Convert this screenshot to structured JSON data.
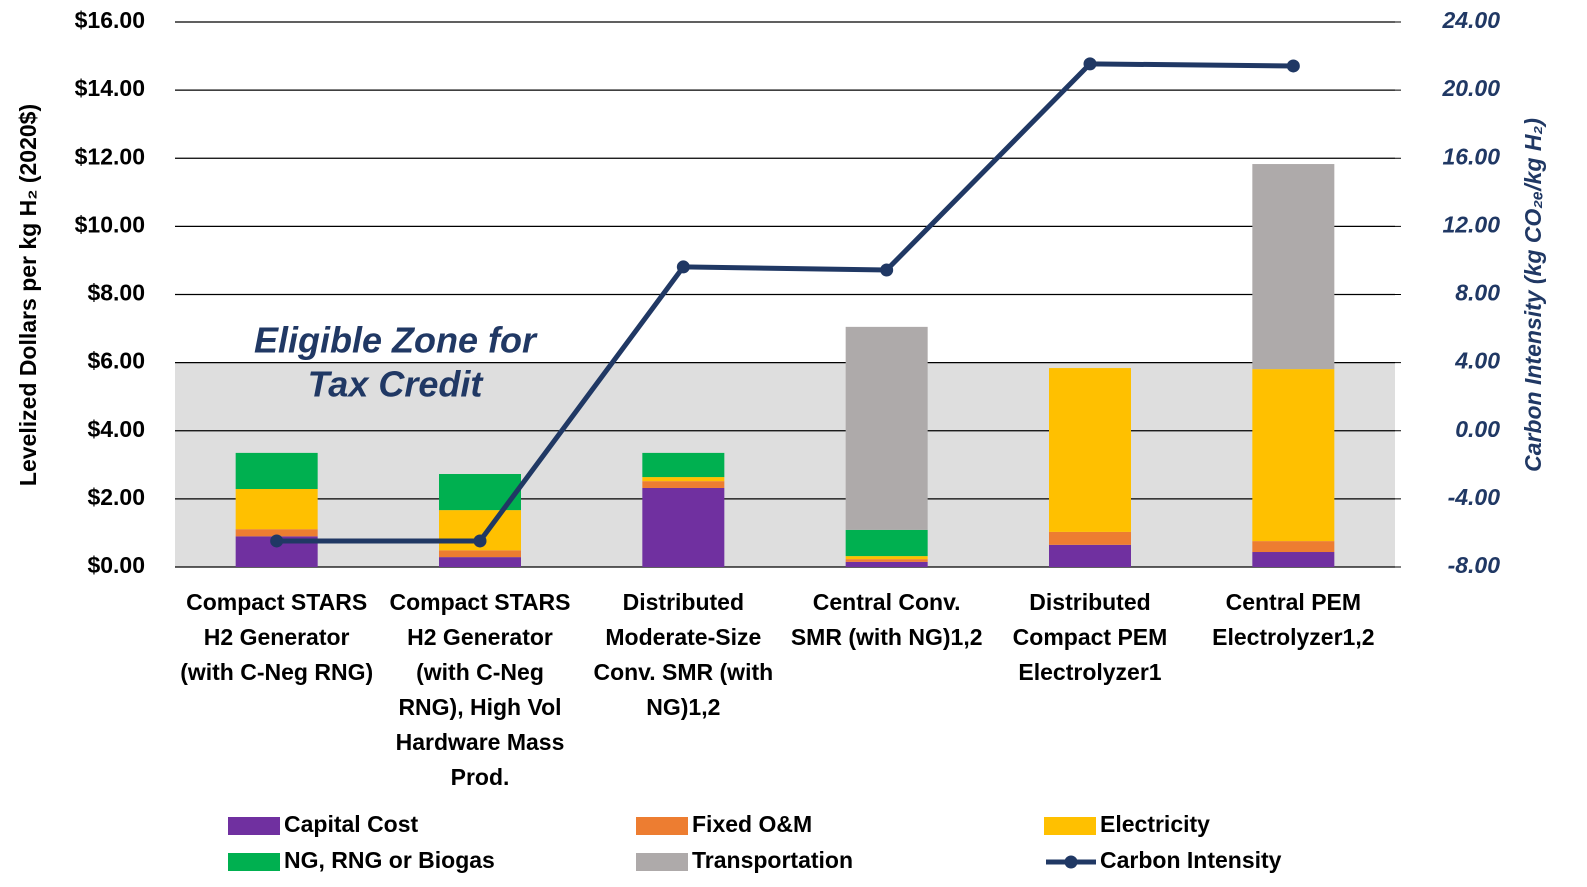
{
  "chart_data": {
    "type": "bar",
    "stacked": true,
    "categories": [
      "Compact STARS H2 Generator (with C-Neg RNG)",
      "Compact STARS H2 Generator (with C-Neg RNG), High Vol Hardware Mass Prod.",
      "Distributed Moderate-Size Conv. SMR (with NG)1,2",
      "Central Conv. SMR (with NG)1,2",
      "Distributed Compact PEM Electrolyzer1",
      "Central PEM Electrolyzer1,2"
    ],
    "series": [
      {
        "name": "Capital Cost",
        "color": "#7030a0",
        "values": [
          0.9,
          0.29,
          2.32,
          0.15,
          0.65,
          0.44
        ]
      },
      {
        "name": "Fixed O&M",
        "color": "#ed7d31",
        "values": [
          0.21,
          0.2,
          0.2,
          0.08,
          0.38,
          0.32
        ]
      },
      {
        "name": "Electricity",
        "color": "#ffc000",
        "values": [
          1.18,
          1.18,
          0.12,
          0.09,
          4.81,
          5.05
        ]
      },
      {
        "name": "NG, RNG or Biogas",
        "color": "#00b050",
        "values": [
          1.06,
          1.06,
          0.71,
          0.77,
          0,
          0
        ]
      },
      {
        "name": "Transportation",
        "color": "#aeaaaa",
        "values": [
          0,
          0,
          0,
          5.96,
          0,
          6.02
        ]
      },
      {
        "name": "Carbon Intensity",
        "color": "#203864",
        "type": "line",
        "axis": "y2",
        "values": [
          -6.47,
          -6.47,
          9.62,
          9.44,
          21.54,
          21.42
        ]
      }
    ],
    "ylabel": "Levelized Dollars per kg H₂ (2020$)",
    "y2label": "Carbon Intensity (kg CO₂ₑ/kg H₂)",
    "ylim": [
      0,
      16
    ],
    "yticks": [
      {
        "value": 0,
        "label": "$0.00"
      },
      {
        "value": 2,
        "label": "$2.00"
      },
      {
        "value": 4,
        "label": "$4.00"
      },
      {
        "value": 6,
        "label": "$6.00"
      },
      {
        "value": 8,
        "label": "$8.00"
      },
      {
        "value": 10,
        "label": "$10.00"
      },
      {
        "value": 12,
        "label": "$12.00"
      },
      {
        "value": 14,
        "label": "$14.00"
      },
      {
        "value": 16,
        "label": "$16.00"
      }
    ],
    "y2lim": [
      -8,
      24
    ],
    "y2ticks": [
      {
        "value": -8,
        "label": "-8.00"
      },
      {
        "value": -4,
        "label": "-4.00"
      },
      {
        "value": 0,
        "label": "0.00"
      },
      {
        "value": 4,
        "label": "4.00"
      },
      {
        "value": 8,
        "label": "8.00"
      },
      {
        "value": 12,
        "label": "12.00"
      },
      {
        "value": 16,
        "label": "16.00"
      },
      {
        "value": 20,
        "label": "20.00"
      },
      {
        "value": 24,
        "label": "24.00"
      }
    ],
    "grid": true,
    "legend": "bottom",
    "zone": {
      "lines": [
        "Eligible Zone for",
        "Tax Credit"
      ],
      "range": [
        0,
        6
      ],
      "color": "#dedede"
    }
  }
}
